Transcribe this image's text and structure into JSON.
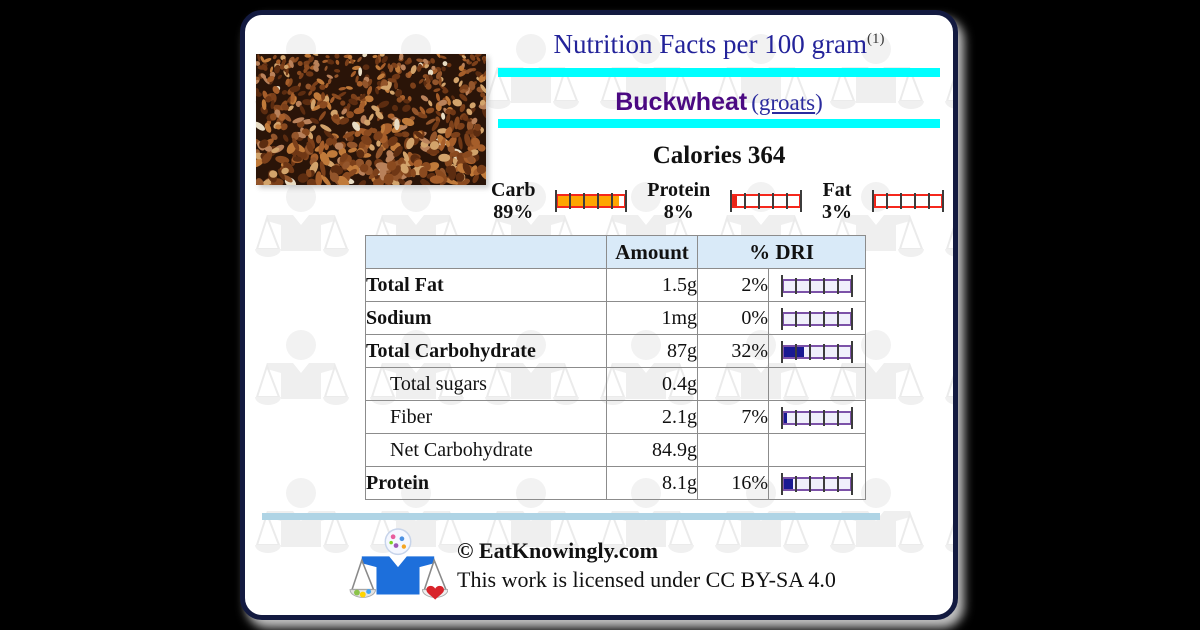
{
  "card": {
    "title": {
      "text": "Nutrition Facts per 100 gram",
      "footnote_ref": "(1)"
    },
    "food": {
      "name": "Buckwheat",
      "paren_open": "(",
      "variant_link": "groats",
      "paren_close": ")"
    },
    "calories": {
      "label": "Calories",
      "value": "364"
    },
    "macros": [
      {
        "label": "Carb",
        "pct_label": "89%",
        "pct": 89,
        "fill": "#FFA500"
      },
      {
        "label": "Protein",
        "pct_label": "8%",
        "pct": 8,
        "fill": "#EA2417"
      },
      {
        "label": "Fat",
        "pct_label": "3%",
        "pct": 3,
        "fill": "#EA2417"
      }
    ],
    "table": {
      "headers": {
        "name": "",
        "amount": "Amount",
        "dri": "% DRI"
      },
      "rows": [
        {
          "name": "Total Fat",
          "bold": true,
          "indent": false,
          "amount": "1.5g",
          "pct": "2%",
          "dri": 2,
          "bar": true
        },
        {
          "name": "Sodium",
          "bold": true,
          "indent": false,
          "amount": "1mg",
          "pct": "0%",
          "dri": 0,
          "bar": true
        },
        {
          "name": "Total Carbohydrate",
          "bold": true,
          "indent": false,
          "amount": "87g",
          "pct": "32%",
          "dri": 32,
          "bar": true
        },
        {
          "name": "Total sugars",
          "bold": false,
          "indent": true,
          "amount": "0.4g",
          "pct": "",
          "dri": 0,
          "bar": false
        },
        {
          "name": "Fiber",
          "bold": false,
          "indent": true,
          "amount": "2.1g",
          "pct": "7%",
          "dri": 7,
          "bar": true
        },
        {
          "name": "Net Carbohydrate",
          "bold": false,
          "indent": true,
          "amount": "84.9g",
          "pct": "",
          "dri": 0,
          "bar": false
        },
        {
          "name": "Protein",
          "bold": true,
          "indent": false,
          "amount": "8.1g",
          "pct": "16%",
          "dri": 16,
          "bar": true
        }
      ]
    },
    "footer": {
      "copyright": "© EatKnowingly.com",
      "license": "This work is licensed under CC BY-SA 4.0"
    }
  },
  "colors": {
    "accent_cyan": "#00FFFF",
    "title_navy": "#23239A",
    "brand_purple": "#4B0982",
    "variant_blue": "#2B2B9E",
    "dri_bar_border": "#7C52A8",
    "dri_bar_fill": "#191992",
    "macro_bar_border": "#F5271C",
    "separator_blue": "#AFD4E5",
    "table_header_bg": "#D9EAF8",
    "page_background": "#000000"
  }
}
